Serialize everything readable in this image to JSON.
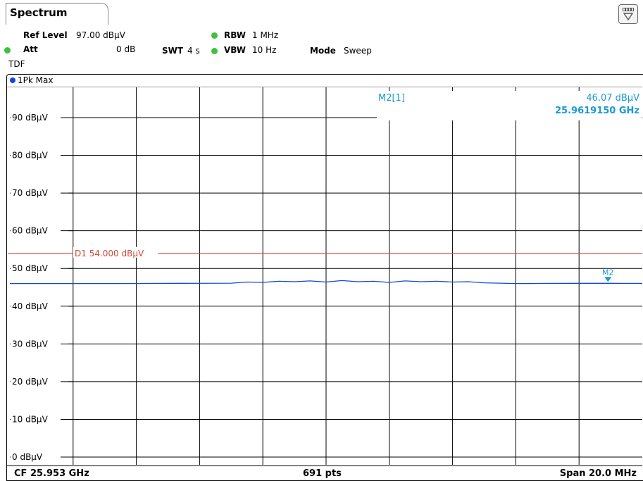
{
  "header": {
    "tab_label": "Spectrum",
    "ref_level_label": "Ref Level",
    "ref_level_value": "97.00 dBµV",
    "att_label": "Att",
    "att_value": "0 dB",
    "swt_label": "SWT",
    "swt_value": "4 s",
    "rbw_label": "RBW",
    "rbw_value": "1 MHz",
    "vbw_label": "VBW",
    "vbw_value": "10 Hz",
    "mode_label": "Mode",
    "mode_value": "Sweep",
    "tdf_label": "TDF",
    "filter_icon": "filter-icon"
  },
  "trace": {
    "label": "1Pk Max",
    "color": "#1547d6"
  },
  "marker_info": {
    "name": "M2[1]",
    "level": "46.07 dBµV",
    "frequency": "25.9619150 GHz",
    "color": "#1a9ad2"
  },
  "limit_line": {
    "label": "D1 54.000 dBµV",
    "color": "#d04a3a"
  },
  "footer": {
    "cf": "CF 25.953 GHz",
    "points": "691 pts",
    "span": "Span 20.0 MHz"
  },
  "chart_data": {
    "type": "line",
    "y_unit": "dBµV",
    "ylim": [
      0,
      97
    ],
    "x_range_ghz": [
      25.943,
      25.963
    ],
    "y_ticks": [
      {
        "value": 90,
        "label": "90 dBµV"
      },
      {
        "value": 80,
        "label": "80 dBµV"
      },
      {
        "value": 70,
        "label": "70 dBµV"
      },
      {
        "value": 60,
        "label": "60 dBµV"
      },
      {
        "value": 50,
        "label": "50 dBµV"
      },
      {
        "value": 40,
        "label": "40 dBµV"
      },
      {
        "value": 30,
        "label": "30 dBµV"
      },
      {
        "value": 20,
        "label": "20 dBµV"
      },
      {
        "value": 10,
        "label": "10 dBµV"
      },
      {
        "value": 0,
        "label": "0 dBµV"
      }
    ],
    "grid": true,
    "limit_line_value": 54.0,
    "marker": {
      "name": "M2",
      "x_ghz": 25.961915,
      "y": 46.07
    },
    "series": [
      {
        "x": [
          25.943,
          25.9465,
          25.95,
          25.9505,
          25.951,
          25.9515,
          25.952,
          25.9525,
          25.953,
          25.9535,
          25.954,
          25.9545,
          25.955,
          25.9555,
          25.956,
          25.9565,
          25.957,
          25.9575,
          25.958,
          25.9585,
          25.959,
          25.9595,
          25.96,
          25.961,
          25.962,
          25.963
        ],
        "y": [
          46.0,
          46.0,
          46.1,
          46.4,
          46.3,
          46.6,
          46.5,
          46.7,
          46.4,
          46.8,
          46.5,
          46.6,
          46.3,
          46.7,
          46.5,
          46.6,
          46.4,
          46.5,
          46.2,
          46.1,
          46.0,
          46.0,
          46.05,
          46.07,
          46.07,
          46.05
        ]
      }
    ]
  }
}
